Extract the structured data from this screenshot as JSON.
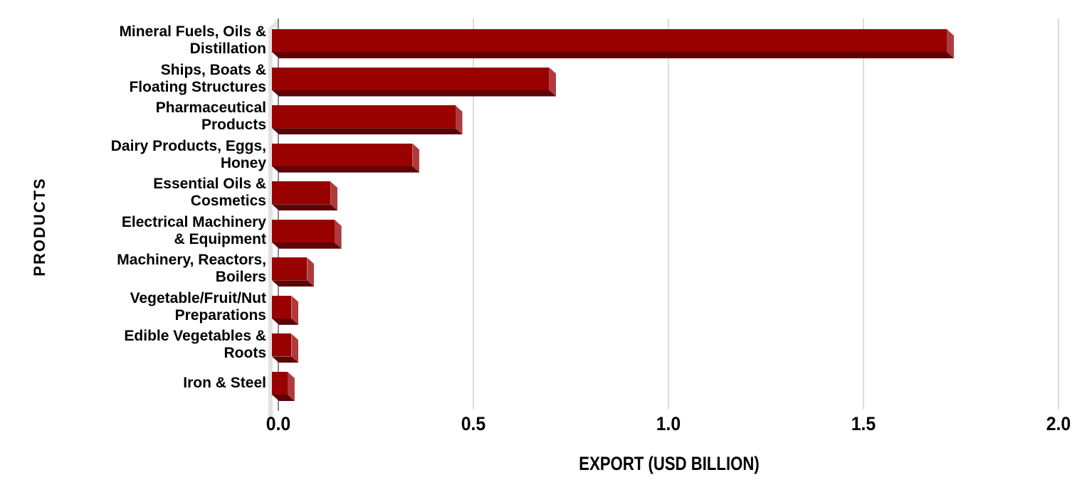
{
  "chart_data": {
    "type": "bar",
    "orientation": "horizontal",
    "title": "",
    "xlabel": "EXPORT (USD BILLION)",
    "ylabel": "PRODUCTS",
    "xlim": [
      0,
      2.0
    ],
    "x_ticks": [
      "0.0",
      "0.5",
      "1.0",
      "1.5",
      "2.0"
    ],
    "grid": true,
    "legend": false,
    "categories": [
      "Mineral Fuels, Oils &\nDistillation",
      "Ships, Boats &\nFloating Structures",
      "Pharmaceutical\nProducts",
      "Dairy Products, Eggs,\nHoney",
      "Essential Oils &\nCosmetics",
      "Electrical Machinery\n& Equipment",
      "Machinery, Reactors,\nBoilers",
      "Vegetable/Fruit/Nut\nPreparations",
      "Edible Vegetables &\nRoots",
      "Iron & Steel"
    ],
    "values": [
      1.73,
      0.71,
      0.47,
      0.36,
      0.15,
      0.16,
      0.09,
      0.05,
      0.05,
      0.04
    ],
    "colors": {
      "bar_face": "#990000",
      "bar_side": "#b03b3c",
      "bar_bottom": "#5c0406",
      "axis_line": "#8a8a8a",
      "gridline": "#dcdcdc",
      "wall": "#e3e1e1",
      "text": "#000000",
      "background": "#ffffff"
    }
  }
}
